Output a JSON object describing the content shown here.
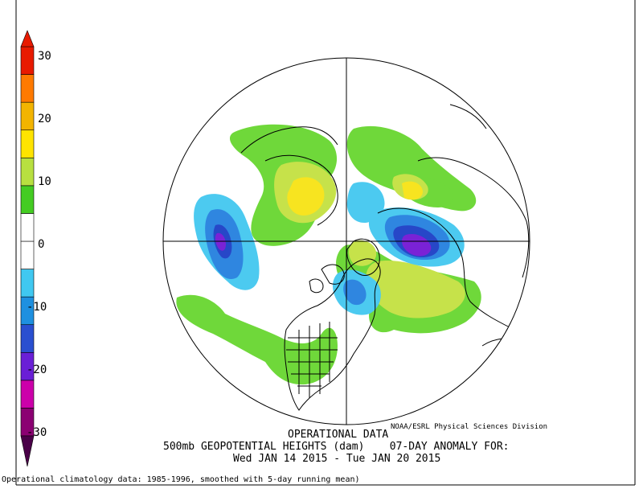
{
  "colorbar": {
    "ticks": [
      "30",
      "20",
      "10",
      "0",
      "-10",
      "-20",
      "-30"
    ],
    "colors": [
      "#8b0072",
      "#cc00aa",
      "#6a1fd6",
      "#2a4fd0",
      "#1e90e0",
      "#40c8f0",
      "#ffffff",
      "#ffffff",
      "#44cc22",
      "#b8e040",
      "#ffe400",
      "#f2b400",
      "#ff7a00",
      "#e81a00"
    ]
  },
  "map": {
    "projection": "polar-stereographic",
    "hemisphere": "northern",
    "palette": {
      "green": "#6fd83a",
      "yellow_green": "#c6e24a",
      "yellow": "#f7e420",
      "light_blue": "#4ccaf0",
      "blue": "#2f86e0",
      "dark_blue": "#2747c8",
      "purple": "#7a22d6",
      "coast": "#000000"
    }
  },
  "caption": {
    "credit": "NOAA/ESRL Physical Sciences Division",
    "line1": "OPERATIONAL DATA",
    "line2": "500mb GEOPOTENTIAL HEIGHTS (dam)    07-DAY ANOMALY FOR:",
    "line3": "Wed JAN 14 2015 - Tue JAN 20 2015"
  },
  "footnote": "Operational climatology data: 1985-1996, smoothed with 5-day running mean)"
}
